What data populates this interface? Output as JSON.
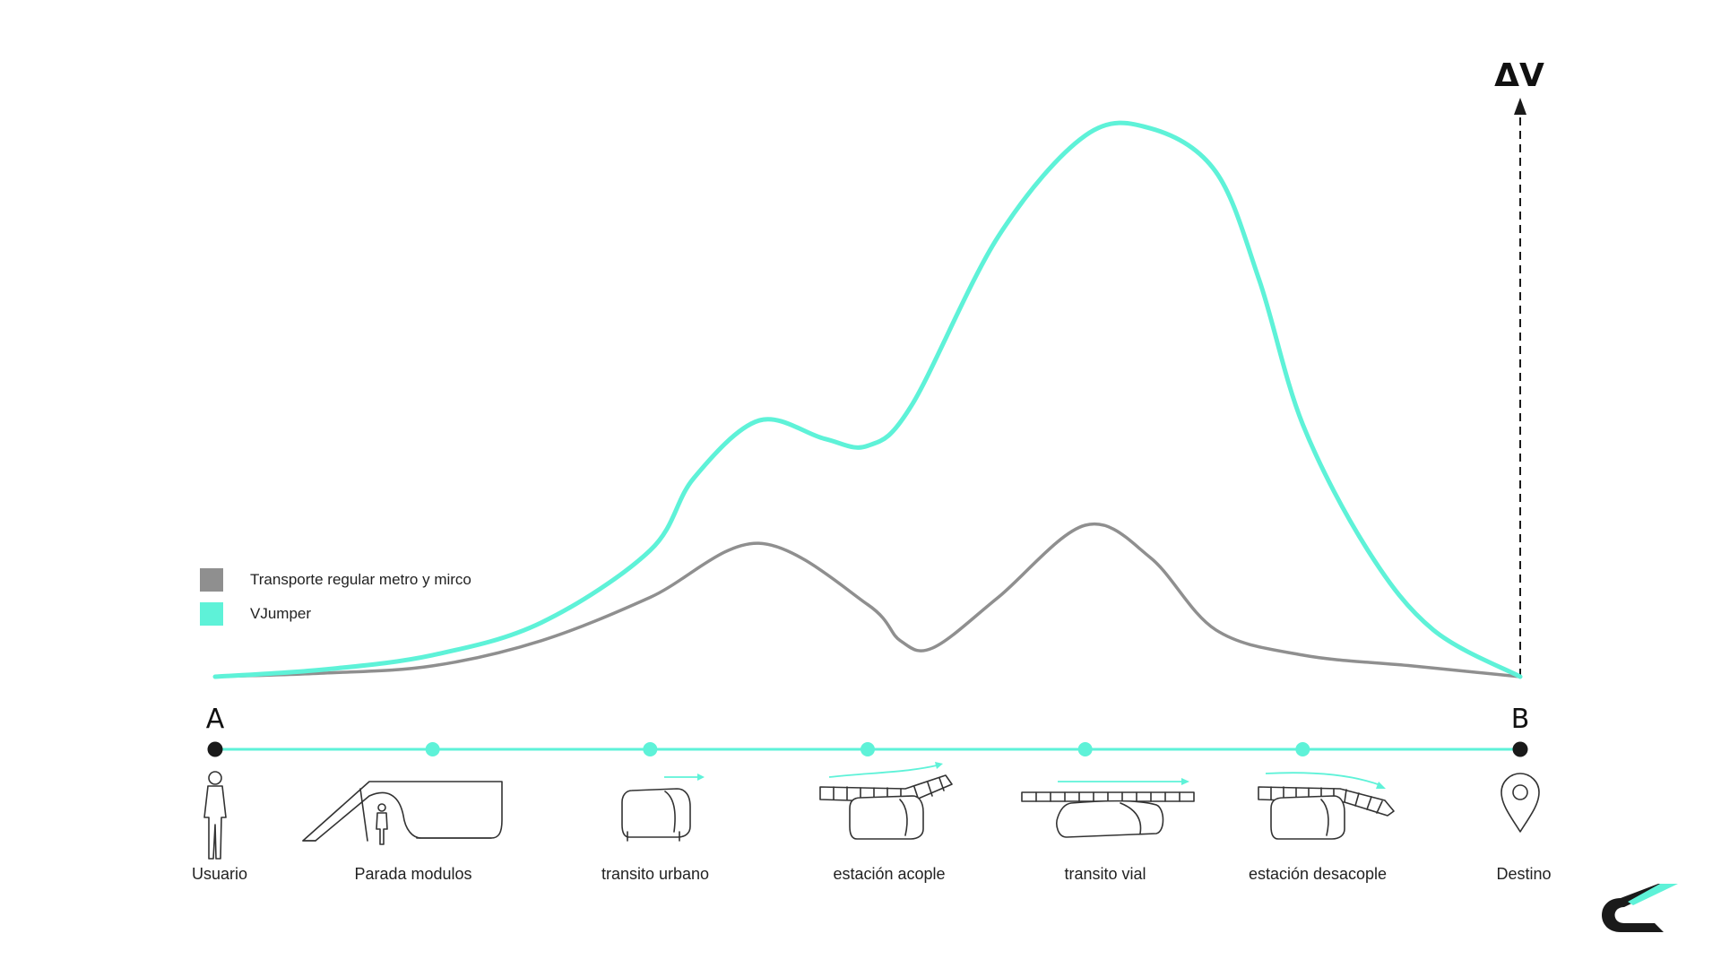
{
  "colors": {
    "accent": "#5ef2d8",
    "regular": "#8f8f8f",
    "dark": "#1a1a1a"
  },
  "legend": {
    "items": [
      {
        "label": "Transporte regular metro y mirco",
        "color": "#8f8f8f"
      },
      {
        "label": "VJumper",
        "color": "#5ef2d8"
      }
    ]
  },
  "axis": {
    "y_label": "ΔV",
    "start_label": "A",
    "end_label": "B"
  },
  "stages": [
    {
      "label": "Usuario",
      "icon": "person-icon"
    },
    {
      "label": "Parada modulos",
      "icon": "bus-stop-icon"
    },
    {
      "label": "transito urbano",
      "icon": "pod-vehicle-icon"
    },
    {
      "label": "estación acople",
      "icon": "docking-station-icon"
    },
    {
      "label": "transito vial",
      "icon": "rail-transit-icon"
    },
    {
      "label": "estación desacople",
      "icon": "undocking-station-icon"
    },
    {
      "label": "Destino",
      "icon": "location-pin-icon"
    }
  ],
  "chart_data": {
    "type": "line",
    "x": [
      0,
      1,
      2,
      3,
      4,
      5,
      6
    ],
    "categories": [
      "Usuario",
      "Parada modulos",
      "transito urbano",
      "estación acople",
      "transito vial",
      "estación desacople",
      "Destino"
    ],
    "series": [
      {
        "name": "Transporte regular metro y mirco",
        "color": "#8f8f8f",
        "x": [
          0,
          0.5,
          1,
          1.5,
          2,
          2.5,
          3,
          3.15,
          3.3,
          3.6,
          4,
          4.3,
          4.6,
          5,
          5.5,
          6
        ],
        "y": [
          0,
          0.01,
          0.03,
          0.1,
          0.22,
          0.37,
          0.2,
          0.1,
          0.08,
          0.22,
          0.42,
          0.33,
          0.13,
          0.06,
          0.03,
          0
        ]
      },
      {
        "name": "VJumper",
        "color": "#5ef2d8",
        "x": [
          0,
          0.5,
          1,
          1.5,
          2,
          2.2,
          2.5,
          2.8,
          3,
          3.2,
          3.6,
          4,
          4.3,
          4.6,
          4.8,
          5,
          5.3,
          5.6,
          6
        ],
        "y": [
          0,
          0.02,
          0.06,
          0.15,
          0.35,
          0.55,
          0.71,
          0.66,
          0.64,
          0.75,
          1.22,
          1.5,
          1.52,
          1.4,
          1.1,
          0.7,
          0.35,
          0.13,
          0
        ]
      }
    ],
    "ylim": [
      0,
      1.6
    ],
    "xlabel": "",
    "ylabel": "ΔV",
    "legend_position": "left",
    "grid": false
  }
}
